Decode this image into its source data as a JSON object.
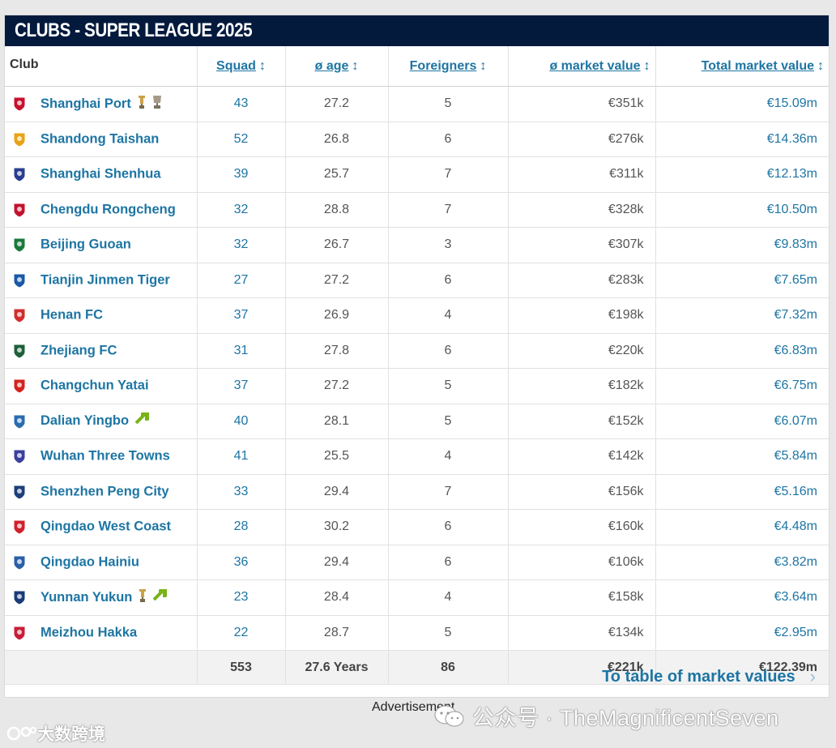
{
  "title": "CLUBS - SUPER LEAGUE 2025",
  "columns": {
    "club": "Club",
    "squad": "Squad",
    "age": "ø age",
    "foreigners": "Foreigners",
    "avg_value": "ø market value",
    "total_value": "Total market value",
    "sort_glyph": "↕"
  },
  "rows": [
    {
      "club": "Shanghai Port",
      "squad": "43",
      "age": "27.2",
      "foreigners": "5",
      "avg": "€351k",
      "total": "€15.09m",
      "crest": "#c8102e",
      "badges": [
        "trophy-icon",
        "cup-icon"
      ]
    },
    {
      "club": "Shandong Taishan",
      "squad": "52",
      "age": "26.8",
      "foreigners": "6",
      "avg": "€276k",
      "total": "€14.36m",
      "crest": "#e8a317",
      "badges": []
    },
    {
      "club": "Shanghai Shenhua",
      "squad": "39",
      "age": "25.7",
      "foreigners": "7",
      "avg": "€311k",
      "total": "€12.13m",
      "crest": "#2a3d8f",
      "badges": []
    },
    {
      "club": "Chengdu Rongcheng",
      "squad": "32",
      "age": "28.8",
      "foreigners": "7",
      "avg": "€328k",
      "total": "€10.50m",
      "crest": "#c4122f",
      "badges": []
    },
    {
      "club": "Beijing Guoan",
      "squad": "32",
      "age": "26.7",
      "foreigners": "3",
      "avg": "€307k",
      "total": "€9.83m",
      "crest": "#1a7a3a",
      "badges": []
    },
    {
      "club": "Tianjin Jinmen Tiger",
      "squad": "27",
      "age": "27.2",
      "foreigners": "6",
      "avg": "€283k",
      "total": "€7.65m",
      "crest": "#1a5aa8",
      "badges": []
    },
    {
      "club": "Henan FC",
      "squad": "37",
      "age": "26.9",
      "foreigners": "4",
      "avg": "€198k",
      "total": "€7.32m",
      "crest": "#d12d2d",
      "badges": []
    },
    {
      "club": "Zhejiang FC",
      "squad": "31",
      "age": "27.8",
      "foreigners": "6",
      "avg": "€220k",
      "total": "€6.83m",
      "crest": "#1e5f3a",
      "badges": []
    },
    {
      "club": "Changchun Yatai",
      "squad": "37",
      "age": "27.2",
      "foreigners": "5",
      "avg": "€182k",
      "total": "€6.75m",
      "crest": "#d4231f",
      "badges": []
    },
    {
      "club": "Dalian Yingbo",
      "squad": "40",
      "age": "28.1",
      "foreigners": "5",
      "avg": "€152k",
      "total": "€6.07m",
      "crest": "#2b6cb0",
      "badges": [
        "promoted-arrow-icon"
      ]
    },
    {
      "club": "Wuhan Three Towns",
      "squad": "41",
      "age": "25.5",
      "foreigners": "4",
      "avg": "€142k",
      "total": "€5.84m",
      "crest": "#3b3f9e",
      "badges": []
    },
    {
      "club": "Shenzhen Peng City",
      "squad": "33",
      "age": "29.4",
      "foreigners": "7",
      "avg": "€156k",
      "total": "€5.16m",
      "crest": "#1d3f7a",
      "badges": []
    },
    {
      "club": "Qingdao West Coast",
      "squad": "28",
      "age": "30.2",
      "foreigners": "6",
      "avg": "€160k",
      "total": "€4.48m",
      "crest": "#d0202c",
      "badges": []
    },
    {
      "club": "Qingdao Hainiu",
      "squad": "36",
      "age": "29.4",
      "foreigners": "6",
      "avg": "€106k",
      "total": "€3.82m",
      "crest": "#2b5fa8",
      "badges": []
    },
    {
      "club": "Yunnan Yukun",
      "squad": "23",
      "age": "28.4",
      "foreigners": "4",
      "avg": "€158k",
      "total": "€3.64m",
      "crest": "#1b3a78",
      "badges": [
        "trophy-icon",
        "promoted-arrow-icon"
      ]
    },
    {
      "club": "Meizhou Hakka",
      "squad": "22",
      "age": "28.7",
      "foreigners": "5",
      "avg": "€134k",
      "total": "€2.95m",
      "crest": "#c81e3a",
      "badges": []
    }
  ],
  "totals": {
    "squad": "553",
    "age": "27.6 Years",
    "foreigners": "86",
    "avg": "€221k",
    "total": "€122.39m"
  },
  "footer_link": "To table of market values",
  "advertisement": "Advertisement",
  "watermark_left": "大数跨境",
  "watermark_right": "公众号 · TheMagnificentSeven",
  "colors": {
    "header_bg": "#031a3d",
    "link": "#1d75a3",
    "promoted_arrow": "#7ab317",
    "trophy": "#c9a24a"
  }
}
